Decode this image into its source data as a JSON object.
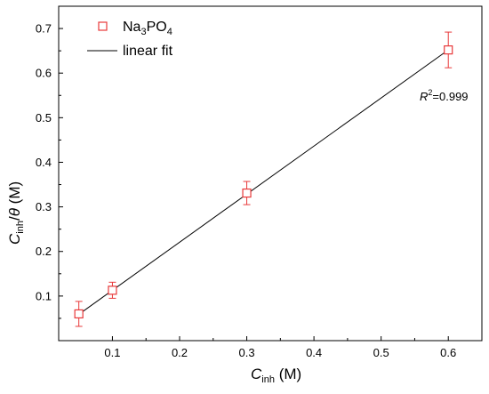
{
  "chart_data": {
    "type": "scatter",
    "xlabel": {
      "main": "C",
      "sub": "inh",
      "unit": " (M)"
    },
    "ylabel": {
      "main": "C",
      "sub": "inh",
      "mid": "/",
      "theta": "θ",
      "unit": " (M)"
    },
    "xlim": [
      0.02,
      0.65
    ],
    "ylim": [
      0.0,
      0.75
    ],
    "xticks": [
      0.1,
      0.2,
      0.3,
      0.4,
      0.5,
      0.6
    ],
    "yticks": [
      0.1,
      0.2,
      0.3,
      0.4,
      0.5,
      0.6,
      0.7
    ],
    "series": [
      {
        "name": {
          "pre": "Na",
          "sub1": "3",
          "mid": "PO",
          "sub2": "4"
        },
        "kind": "markers",
        "marker": "open-square",
        "color": "#e8393a",
        "points": [
          {
            "x": 0.05,
            "y": 0.06,
            "err": 0.028
          },
          {
            "x": 0.1,
            "y": 0.113,
            "err": 0.018
          },
          {
            "x": 0.3,
            "y": 0.331,
            "err": 0.026
          },
          {
            "x": 0.6,
            "y": 0.652,
            "err": 0.04
          }
        ]
      },
      {
        "name": "linear fit",
        "kind": "line",
        "color": "#000000",
        "x": [
          0.05,
          0.6
        ],
        "y": [
          0.059,
          0.652
        ]
      }
    ],
    "annotation": {
      "italic": "R",
      "sup": "2",
      "text": "=0.999"
    },
    "legend_position": "top-left",
    "grid": false
  }
}
